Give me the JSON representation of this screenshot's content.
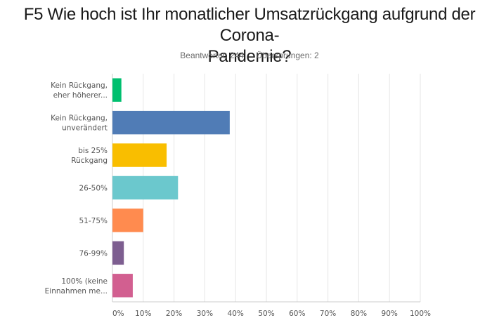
{
  "header": {
    "title": "F5 Wie hoch ist Ihr monatlicher Umsatzrückgang aufgrund der Corona-Pandemie?",
    "title_line1": "F5 Wie hoch ist Ihr monatlicher Umsatzrückgang aufgrund der Corona-",
    "title_line2": "Pandemie?",
    "answered": "Beantwortet: 244",
    "skipped": "Übersprungen: 2"
  },
  "chart_data": {
    "type": "bar",
    "orientation": "horizontal",
    "title": "F5 Wie hoch ist Ihr monatlicher Umsatzrückgang aufgrund der Corona-Pandemie?",
    "xlabel": "",
    "ylabel": "",
    "xlim": [
      0,
      100
    ],
    "grid": true,
    "categories": [
      [
        "Kein Rückgang,",
        "eher höherer..."
      ],
      [
        "Kein Rückgang,",
        "unverändert"
      ],
      [
        "bis 25%",
        "Rückgang"
      ],
      [
        "26-50%"
      ],
      [
        "51-75%"
      ],
      [
        "76-99%"
      ],
      [
        "100% (keine",
        "Einnahmen me..."
      ]
    ],
    "values": [
      2.9,
      38.1,
      17.6,
      21.3,
      10.0,
      3.7,
      6.6
    ],
    "colors": [
      "#00bf6f",
      "#507cb6",
      "#f9be00",
      "#6bc8cd",
      "#ff8b4f",
      "#7d5e90",
      "#d25f90"
    ],
    "ticks": [
      "0%",
      "10%",
      "20%",
      "30%",
      "40%",
      "50%",
      "60%",
      "70%",
      "80%",
      "90%",
      "100%"
    ],
    "tick_values": [
      0,
      10,
      20,
      30,
      40,
      50,
      60,
      70,
      80,
      90,
      100
    ]
  }
}
